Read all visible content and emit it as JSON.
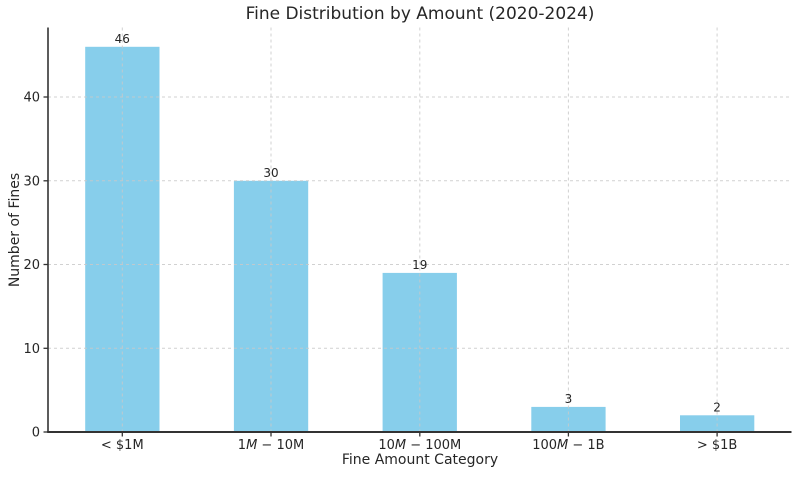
{
  "chart_data": {
    "type": "bar",
    "title": "Fine Distribution by Amount (2020-2024)",
    "xlabel": "Fine Amount Category",
    "ylabel": "Number of Fines",
    "categories": [
      "< $1M",
      "1M − 10M",
      "10M − 100M",
      "100M − 1B",
      "> $1B"
    ],
    "category_label_parts": [
      [
        {
          "t": "< $1M",
          "i": false
        }
      ],
      [
        {
          "t": "1",
          "i": false
        },
        {
          "t": "M",
          "i": true
        },
        {
          "t": " − 10M",
          "i": false
        }
      ],
      [
        {
          "t": "10",
          "i": false
        },
        {
          "t": "M",
          "i": true
        },
        {
          "t": " − 100M",
          "i": false
        }
      ],
      [
        {
          "t": "100",
          "i": false
        },
        {
          "t": "M",
          "i": true
        },
        {
          "t": " − 1B",
          "i": false
        }
      ],
      [
        {
          "t": "> $1B",
          "i": false
        }
      ]
    ],
    "values": [
      46,
      30,
      19,
      3,
      2
    ],
    "bar_value_labels": [
      "46",
      "30",
      "19",
      "3",
      "2"
    ],
    "ytick_labels": [
      "0",
      "10",
      "20",
      "30",
      "40"
    ],
    "yticks": [
      0,
      10,
      20,
      30,
      40
    ],
    "ylim": [
      0,
      48.3
    ],
    "grid": "dashed horizontal at yticks and dashed vertical at category centers",
    "legend": "none",
    "colors": {
      "bar_fill": "#87CEEB",
      "text": "#262626",
      "grid": "#c9c9c9",
      "spine": "#333333",
      "background": "#ffffff"
    }
  }
}
